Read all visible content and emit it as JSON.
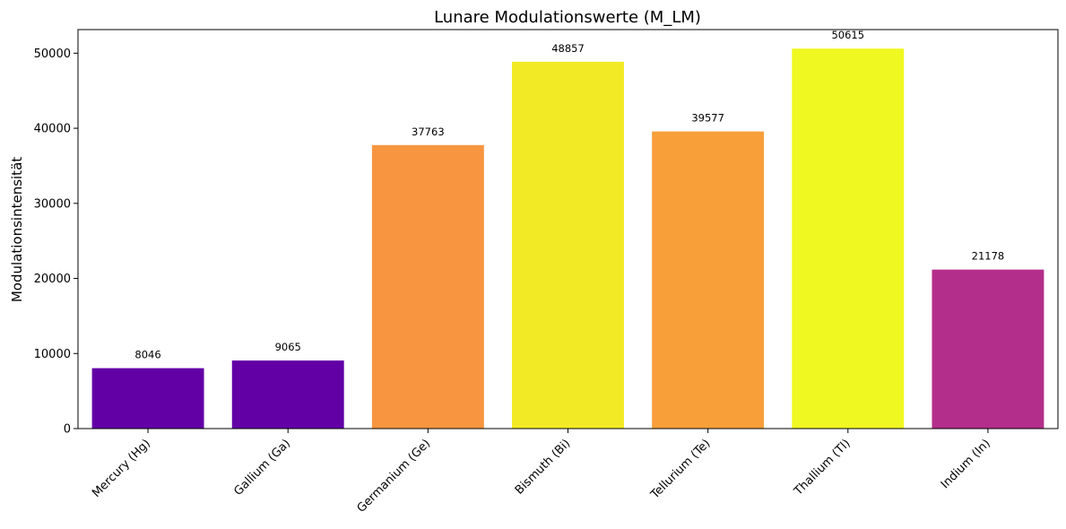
{
  "chart_data": {
    "type": "bar",
    "title": "Lunare Modulationswerte (M_LM)",
    "xlabel": "",
    "ylabel": "Modulationsintensität",
    "categories": [
      "Mercury (Hg)",
      "Gallium (Ga)",
      "Germanium (Ge)",
      "Bismuth (Bi)",
      "Tellurium (Te)",
      "Thallium (Tl)",
      "Indium (In)"
    ],
    "values": [
      8046,
      9065,
      37763,
      48857,
      39577,
      50615,
      21178
    ],
    "colors": [
      "#6200a6",
      "#6200a6",
      "#f79540",
      "#f3ea26",
      "#f89f3a",
      "#eff821",
      "#b32e8a"
    ],
    "ylim": [
      0,
      53146
    ],
    "yticks": [
      0,
      10000,
      20000,
      30000,
      40000,
      50000
    ],
    "grid": false,
    "legend": "none"
  }
}
